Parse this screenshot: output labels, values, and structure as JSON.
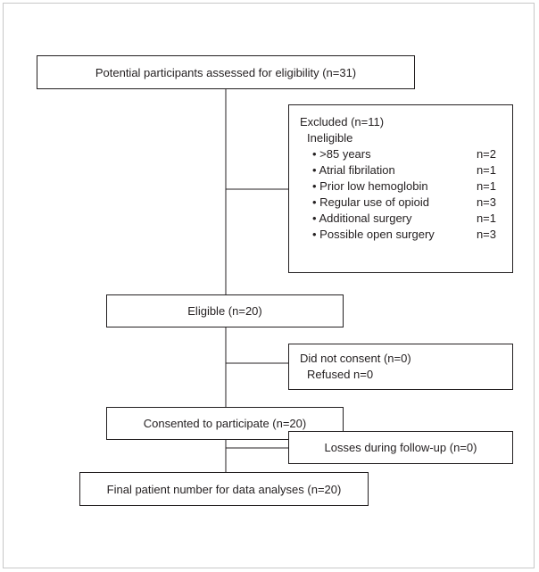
{
  "main_flow": [
    {
      "label": "Potential participants assessed for eligibility (n=31)"
    },
    {
      "label": "Eligible (n=20)"
    },
    {
      "label": "Consented to participate (n=20)"
    },
    {
      "label": "Final patient number for data analyses (n=20)"
    }
  ],
  "excluded": {
    "title": "Excluded (n=11)",
    "subtitle": "Ineligible",
    "items": [
      {
        "reason": "• >85 years",
        "count": "n=2"
      },
      {
        "reason": "• Atrial fibrilation",
        "count": "n=1"
      },
      {
        "reason": "• Prior low hemoglobin",
        "count": "n=1"
      },
      {
        "reason": "• Regular use of opioid",
        "count": "n=3"
      },
      {
        "reason": "• Additional surgery",
        "count": "n=1"
      },
      {
        "reason": "• Possible open surgery",
        "count": "n=3"
      }
    ]
  },
  "not_consented": {
    "title": "Did not consent (n=0)",
    "detail": "Refused n=0"
  },
  "losses": {
    "title": "Losses during follow-up (n=0)"
  }
}
